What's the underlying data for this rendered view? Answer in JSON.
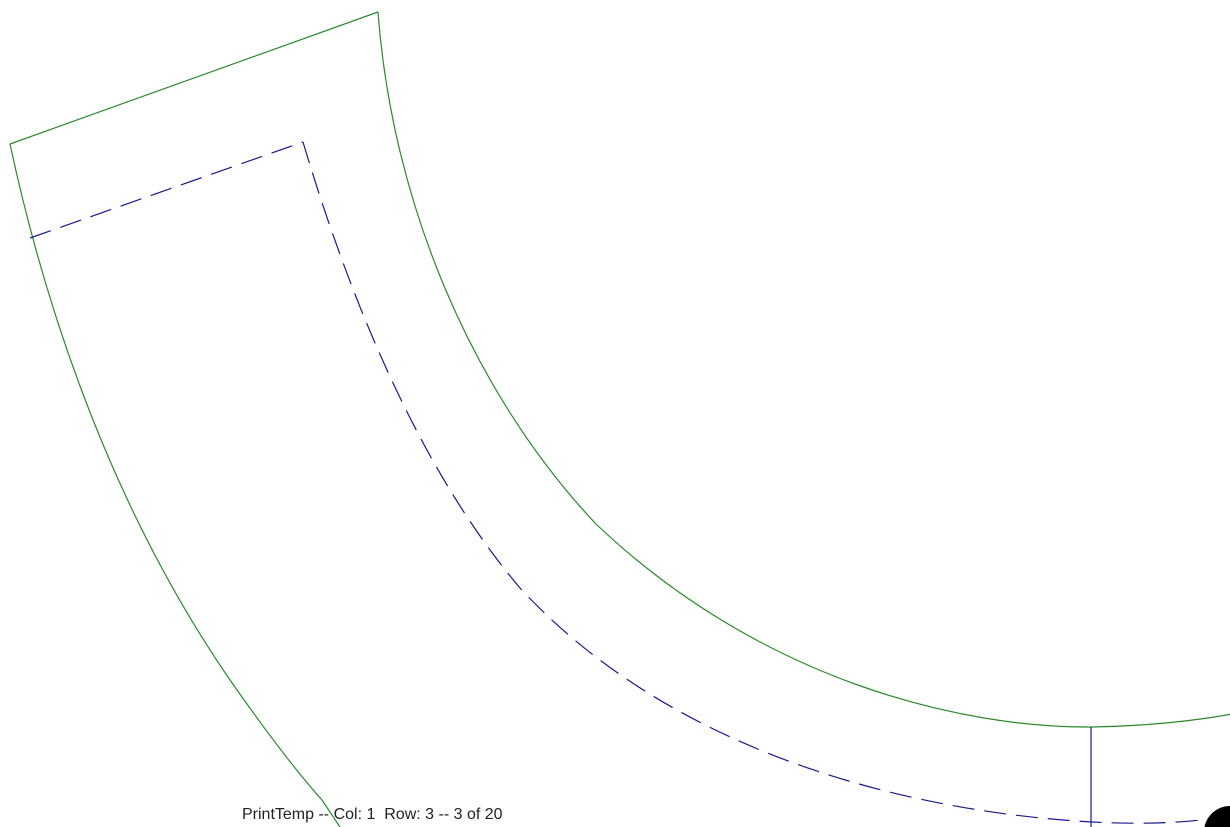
{
  "page": {
    "footer": "PrintTemp -- Col: 1  Row: 3 -- 3 of 20"
  },
  "colors": {
    "cut_line": "#2a8a2a",
    "seam_line": "#1a1a8c",
    "mark": "#000000",
    "background": "#ffffff"
  }
}
